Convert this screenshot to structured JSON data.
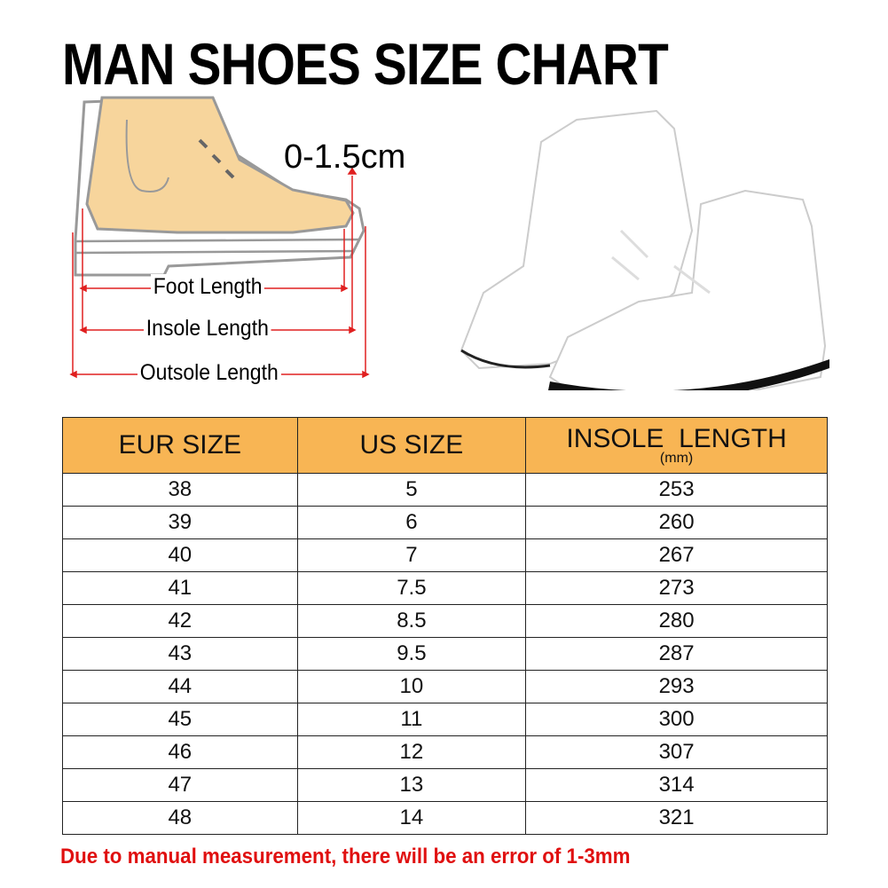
{
  "title": "MAN SHOES SIZE CHART",
  "diagram": {
    "gap_label": "0-1.5cm",
    "foot_length_label": "Foot Length",
    "insole_length_label": "Insole Length",
    "outsole_length_label": "Outsole Length",
    "measure_color": "#e02020",
    "foot_color": "#f7d59c"
  },
  "table": {
    "header_color": "#f8b554",
    "headers": {
      "eur": "EUR SIZE",
      "us": "US SIZE",
      "insole": "INSOLE  LENGTH",
      "insole_unit": "(mm)"
    },
    "rows": [
      {
        "eur": "38",
        "us": "5",
        "insole": "253"
      },
      {
        "eur": "39",
        "us": "6",
        "insole": "260"
      },
      {
        "eur": "40",
        "us": "7",
        "insole": "267"
      },
      {
        "eur": "41",
        "us": "7.5",
        "insole": "273"
      },
      {
        "eur": "42",
        "us": "8.5",
        "insole": "280"
      },
      {
        "eur": "43",
        "us": "9.5",
        "insole": "287"
      },
      {
        "eur": "44",
        "us": "10",
        "insole": "293"
      },
      {
        "eur": "45",
        "us": "11",
        "insole": "300"
      },
      {
        "eur": "46",
        "us": "12",
        "insole": "307"
      },
      {
        "eur": "47",
        "us": "13",
        "insole": "314"
      },
      {
        "eur": "48",
        "us": "14",
        "insole": "321"
      }
    ]
  },
  "note": "Due to manual measurement, there will be an error of 1-3mm",
  "note_color": "#e01010"
}
